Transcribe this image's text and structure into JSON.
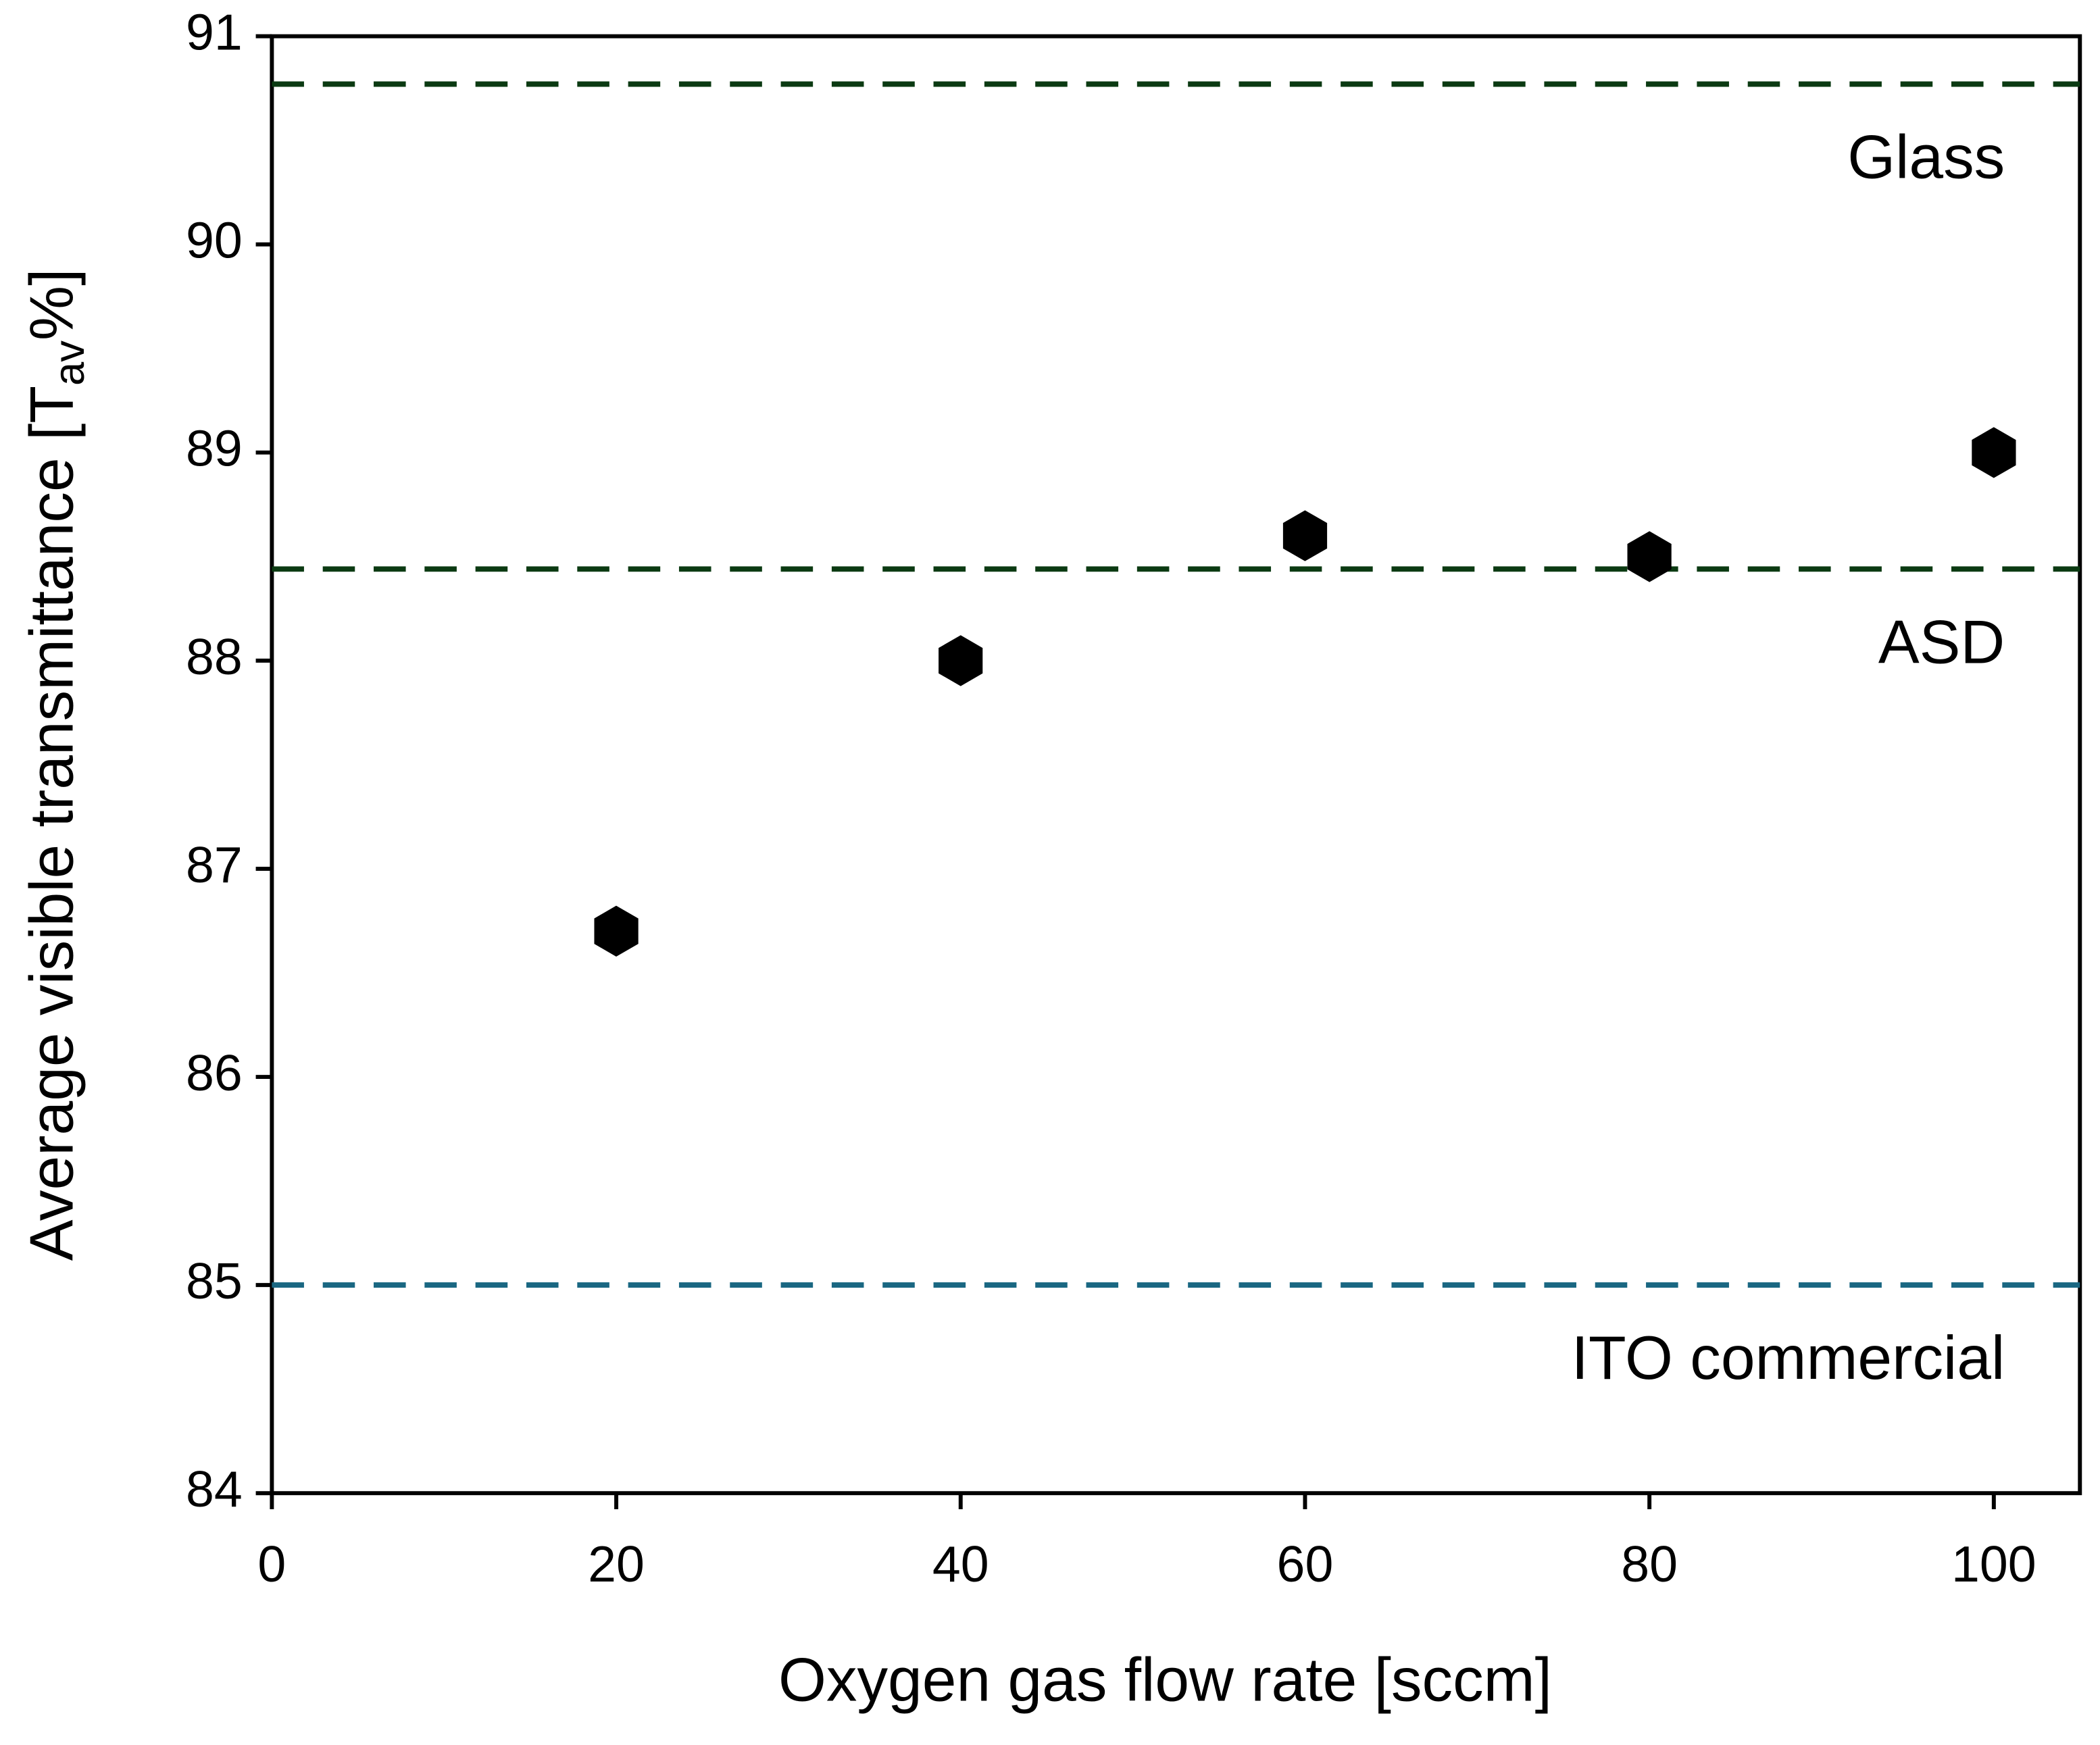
{
  "chart_data": {
    "type": "scatter",
    "xlabel": "Oxygen gas flow rate [sccm]",
    "ylabel": {
      "text": "Average visible transmittance [T",
      "sub": "av",
      "tail": "%]"
    },
    "x": [
      20,
      40,
      60,
      80,
      100
    ],
    "values": [
      86.7,
      88.0,
      88.6,
      88.5,
      89.0
    ],
    "color": "#000000",
    "marker": "hexagon",
    "xlim": [
      0,
      105
    ],
    "xticks": [
      0,
      20,
      40,
      60,
      80,
      100
    ],
    "ylim": [
      84,
      91
    ],
    "yticks": [
      84,
      85,
      86,
      87,
      88,
      89,
      90,
      91
    ],
    "grid": false,
    "reference_lines": [
      {
        "name": "Glass",
        "value": 90.77,
        "color": "#0b3a12"
      },
      {
        "name": "ASD",
        "value": 88.44,
        "color": "#0b3a12"
      },
      {
        "name": "ITO commercial",
        "value": 85.0,
        "color": "#1a6782"
      }
    ]
  }
}
